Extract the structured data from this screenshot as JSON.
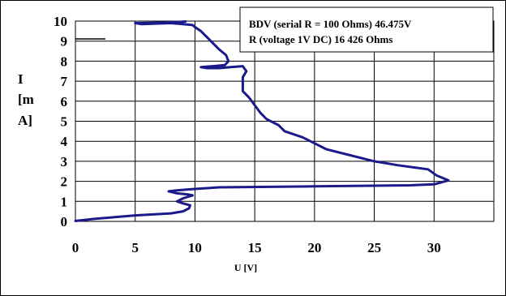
{
  "chart_data": {
    "type": "line",
    "title": "",
    "xlabel": "U [V]",
    "ylabel_lines": [
      "I",
      "[m",
      "A]"
    ],
    "xlim": [
      0,
      35
    ],
    "ylim": [
      0,
      10
    ],
    "x_ticks": [
      "0",
      "5",
      "10",
      "15",
      "20",
      "25",
      "30"
    ],
    "y_ticks": [
      "0",
      "1",
      "2",
      "3",
      "4",
      "5",
      "6",
      "7",
      "8",
      "9",
      "10"
    ],
    "grid": true,
    "legend_position": "top-right",
    "annotations": [
      "BDV (serial R = 100 Ohms) 46.475V",
      "R (voltage 1V  DC)   16 426 Ohms"
    ],
    "line_color": "#1a1a8c",
    "series": [
      {
        "name": "",
        "points": [
          [
            0.0,
            0.02
          ],
          [
            1.5,
            0.12
          ],
          [
            3.0,
            0.2
          ],
          [
            5.0,
            0.3
          ],
          [
            6.5,
            0.35
          ],
          [
            8.0,
            0.4
          ],
          [
            9.0,
            0.5
          ],
          [
            9.5,
            0.65
          ],
          [
            9.6,
            0.8
          ],
          [
            9.0,
            0.9
          ],
          [
            8.5,
            1.0
          ],
          [
            9.0,
            1.15
          ],
          [
            9.8,
            1.3
          ],
          [
            9.4,
            1.35
          ],
          [
            8.5,
            1.4
          ],
          [
            7.8,
            1.5
          ],
          [
            8.5,
            1.55
          ],
          [
            9.5,
            1.6
          ],
          [
            12.0,
            1.7
          ],
          [
            20.0,
            1.75
          ],
          [
            28.0,
            1.8
          ],
          [
            30.0,
            1.85
          ],
          [
            31.2,
            2.05
          ],
          [
            30.2,
            2.3
          ],
          [
            29.5,
            2.6
          ],
          [
            27.0,
            2.8
          ],
          [
            25.0,
            3.0
          ],
          [
            23.0,
            3.3
          ],
          [
            21.0,
            3.6
          ],
          [
            20.0,
            3.9
          ],
          [
            19.0,
            4.2
          ],
          [
            17.5,
            4.5
          ],
          [
            17.0,
            4.8
          ],
          [
            16.0,
            5.1
          ],
          [
            15.5,
            5.4
          ],
          [
            15.0,
            5.8
          ],
          [
            14.5,
            6.2
          ],
          [
            14.0,
            6.5
          ],
          [
            14.0,
            6.9
          ],
          [
            14.0,
            7.2
          ],
          [
            14.3,
            7.5
          ],
          [
            14.0,
            7.75
          ],
          [
            13.0,
            7.7
          ],
          [
            12.0,
            7.65
          ],
          [
            11.0,
            7.65
          ],
          [
            10.5,
            7.7
          ],
          [
            11.5,
            7.75
          ],
          [
            12.5,
            7.8
          ],
          [
            12.8,
            8.0
          ],
          [
            12.6,
            8.3
          ],
          [
            12.0,
            8.6
          ],
          [
            11.5,
            8.9
          ],
          [
            11.0,
            9.2
          ],
          [
            10.5,
            9.5
          ],
          [
            10.0,
            9.7
          ],
          [
            9.8,
            9.8
          ],
          [
            9.0,
            9.85
          ],
          [
            8.0,
            9.9
          ],
          [
            7.0,
            9.88
          ],
          [
            5.5,
            9.85
          ],
          [
            5.0,
            9.9
          ],
          [
            7.0,
            9.92
          ],
          [
            8.5,
            9.95
          ],
          [
            9.2,
            9.98
          ]
        ]
      }
    ]
  }
}
